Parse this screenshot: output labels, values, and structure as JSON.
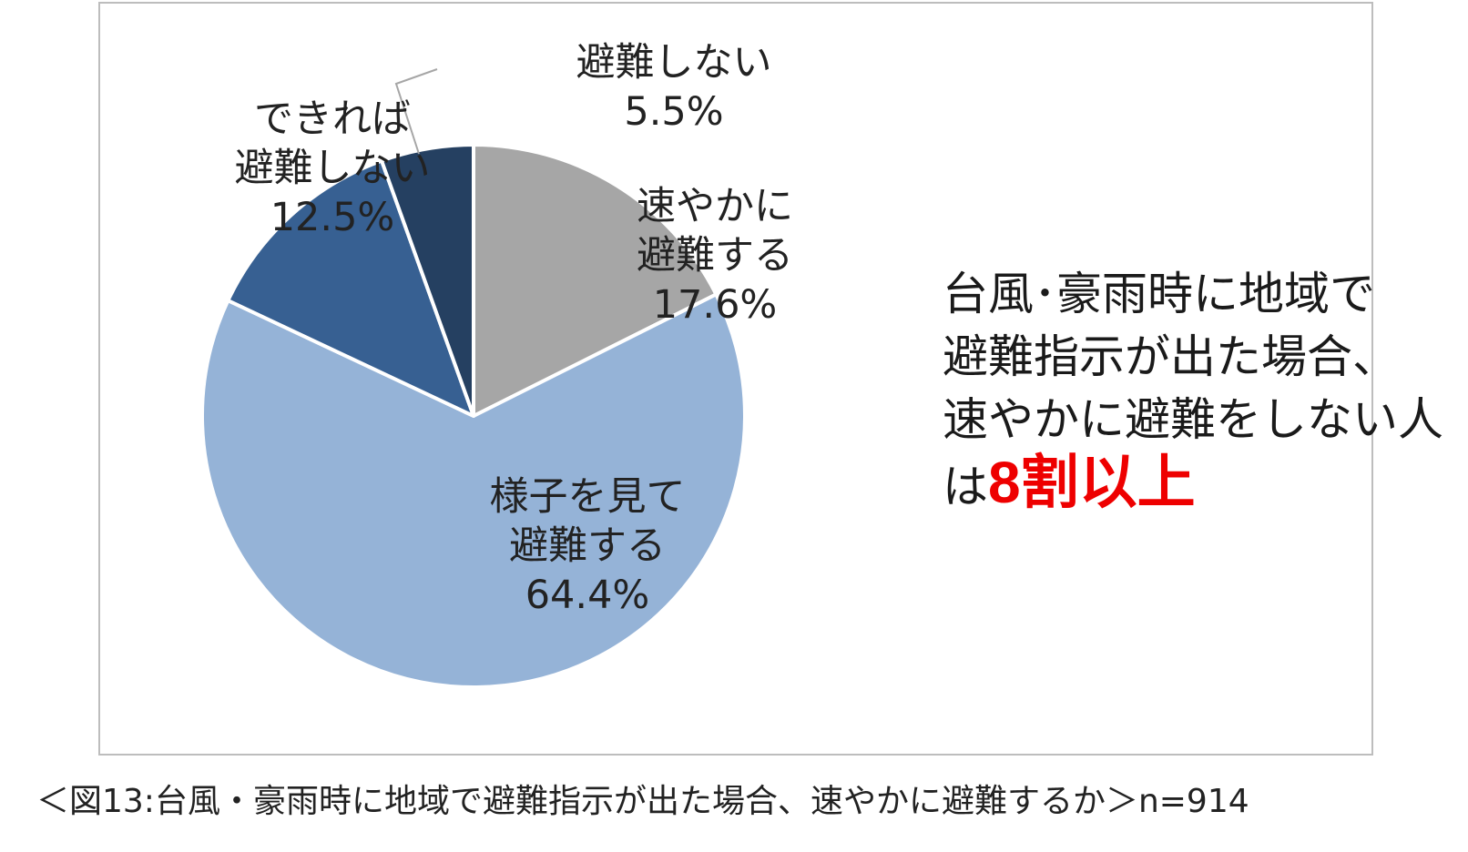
{
  "chart_data": {
    "type": "pie",
    "slices": [
      {
        "label_line1": "速やかに",
        "label_line2": "避難する",
        "value": 17.6,
        "value_text": "17.6%",
        "color": "#a6a6a6"
      },
      {
        "label_line1": "様子を見て",
        "label_line2": "避難する",
        "value": 64.4,
        "value_text": "64.4%",
        "color": "#95b3d7"
      },
      {
        "label_line1": "できれば",
        "label_line2": "避難しない",
        "value": 12.5,
        "value_text": "12.5%",
        "color": "#376092"
      },
      {
        "label_line1": "避難しない",
        "label_line2": "",
        "value": 5.5,
        "value_text": "5.5%",
        "color": "#254061"
      }
    ],
    "start": "12 o'clock",
    "direction": "clockwise",
    "legend": "none"
  },
  "callout": {
    "line1": "台風･豪雨時に地域で",
    "line2": "避難指示が出た場合、",
    "line3": "速やかに避難をしない人",
    "line4_prefix": "は",
    "line4_highlight": "8割以上",
    "highlight_color": "#ee0000"
  },
  "caption": "＜図13:台風・豪雨時に地域で避難指示が出た場合、速やかに避難するか＞n=914"
}
